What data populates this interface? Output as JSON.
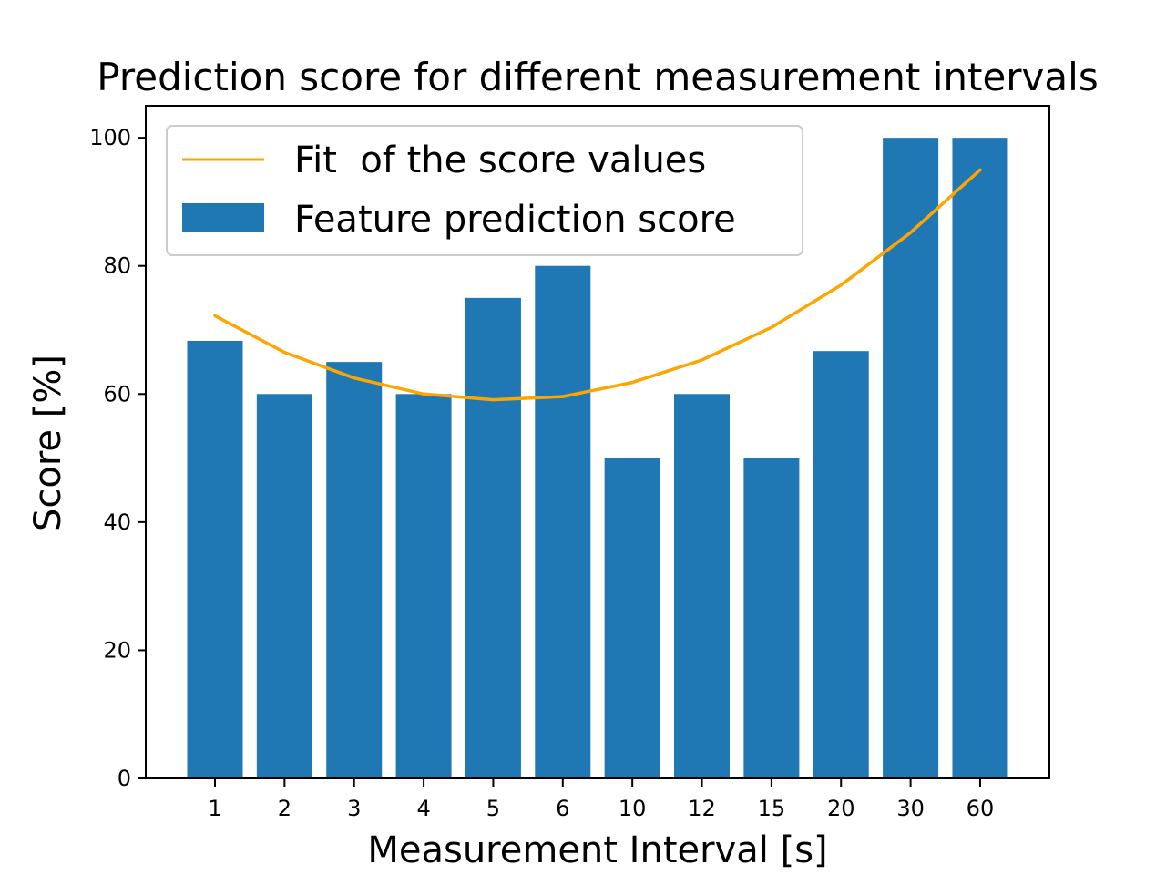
{
  "chart_data": {
    "type": "bar",
    "title": "Prediction score for different measurement intervals",
    "xlabel": "Measurement Interval [s]",
    "ylabel": "Score [%]",
    "categories": [
      "1",
      "2",
      "3",
      "4",
      "5",
      "6",
      "10",
      "12",
      "15",
      "20",
      "30",
      "60"
    ],
    "ylim": [
      0,
      105
    ],
    "yticks": [
      "0",
      "20",
      "40",
      "60",
      "80",
      "100"
    ],
    "series": [
      {
        "name": "Feature prediction score",
        "kind": "bar",
        "color": "#1f77b4",
        "values": [
          68.3,
          60,
          65,
          60,
          75,
          80,
          50,
          60,
          50,
          66.7,
          100,
          100
        ]
      },
      {
        "name": "Fit  of the score values",
        "kind": "line",
        "color": "#ffa500",
        "values": [
          72.2,
          66.5,
          62.5,
          60.0,
          59.1,
          59.6,
          61.8,
          65.3,
          70.4,
          77.0,
          85.2,
          95.0
        ]
      }
    ],
    "legend_position": "upper-left",
    "grid": false
  }
}
